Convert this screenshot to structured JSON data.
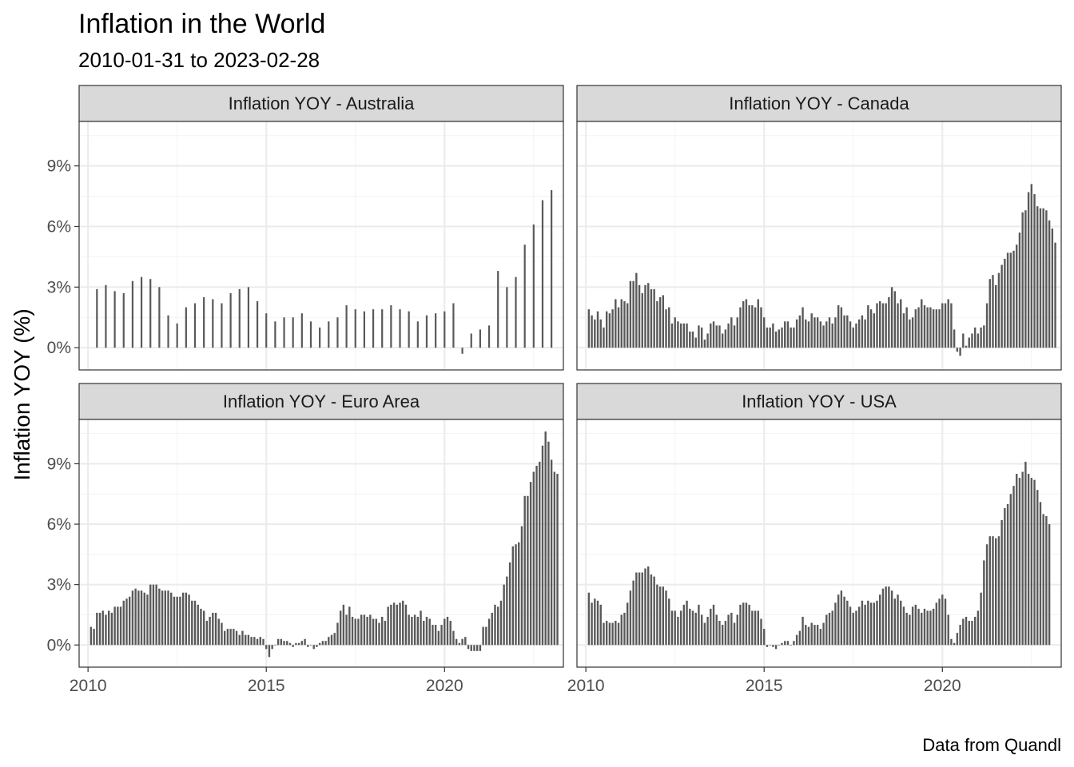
{
  "title": "Inflation in the World",
  "subtitle": "2010-01-31 to 2023-02-28",
  "caption": "Data from Quandl",
  "colors": {
    "bar": "#595959",
    "strip": "#d9d9d9",
    "grid": "#ebebeb"
  },
  "chart_data": {
    "type": "bar",
    "ylabel": "Inflation YOY (%)",
    "xlabel": "",
    "ylim": [
      -1.1,
      11.2
    ],
    "xlim": [
      "2009-10-01",
      "2023-05-01"
    ],
    "y_ticks": [
      0,
      3,
      6,
      9
    ],
    "y_tick_labels": [
      "0%",
      "3%",
      "6%",
      "9%"
    ],
    "x_ticks": [
      2010,
      2015,
      2020
    ],
    "x_tick_labels": [
      "2010",
      "2015",
      "2020"
    ],
    "grid": true,
    "facets": [
      {
        "name": "Inflation YOY - Australia",
        "frequency": "quarterly",
        "start": "2010-03",
        "values": [
          2.9,
          3.1,
          2.8,
          2.7,
          3.3,
          3.5,
          3.4,
          3.0,
          1.6,
          1.2,
          2.0,
          2.2,
          2.5,
          2.4,
          2.2,
          2.7,
          2.9,
          3.0,
          2.3,
          1.7,
          1.3,
          1.5,
          1.5,
          1.7,
          1.3,
          1.0,
          1.3,
          1.5,
          2.1,
          1.9,
          1.8,
          1.9,
          1.9,
          2.1,
          1.9,
          1.8,
          1.3,
          1.6,
          1.7,
          1.8,
          2.2,
          -0.3,
          0.7,
          0.9,
          1.1,
          3.8,
          3.0,
          3.5,
          5.1,
          6.1,
          7.3,
          7.8
        ]
      },
      {
        "name": "Inflation YOY - Canada",
        "frequency": "monthly",
        "start": "2010-01",
        "values": [
          1.9,
          1.6,
          1.4,
          1.8,
          1.4,
          1.0,
          1.8,
          1.7,
          1.9,
          2.4,
          2.0,
          2.4,
          2.3,
          2.2,
          3.3,
          3.3,
          3.7,
          3.1,
          2.7,
          3.1,
          3.2,
          2.9,
          2.9,
          2.3,
          2.5,
          2.6,
          1.9,
          2.0,
          1.2,
          1.5,
          1.3,
          1.2,
          1.2,
          1.2,
          0.8,
          0.8,
          0.5,
          1.1,
          1.0,
          0.4,
          0.7,
          1.2,
          1.3,
          1.1,
          1.1,
          0.7,
          0.9,
          1.2,
          1.5,
          1.1,
          1.5,
          2.0,
          2.3,
          2.4,
          2.1,
          2.1,
          2.0,
          2.4,
          2.0,
          1.5,
          1.0,
          1.0,
          1.2,
          0.8,
          0.9,
          1.0,
          1.3,
          1.3,
          1.0,
          1.0,
          1.4,
          1.6,
          2.0,
          1.4,
          1.3,
          1.7,
          1.5,
          1.5,
          1.3,
          1.1,
          1.3,
          1.5,
          1.2,
          1.5,
          2.1,
          2.0,
          1.6,
          1.6,
          1.3,
          1.0,
          1.2,
          1.4,
          1.6,
          1.4,
          2.1,
          1.9,
          1.7,
          2.2,
          2.3,
          2.2,
          2.2,
          2.5,
          3.0,
          2.8,
          2.2,
          2.4,
          1.7,
          2.0,
          1.4,
          1.5,
          1.9,
          2.0,
          2.4,
          2.1,
          2.0,
          2.0,
          1.9,
          1.9,
          1.9,
          2.2,
          2.2,
          2.4,
          2.2,
          0.9,
          -0.2,
          -0.4,
          0.7,
          0.1,
          0.5,
          0.7,
          1.0,
          0.7,
          1.0,
          1.1,
          2.2,
          3.4,
          3.6,
          3.1,
          3.7,
          4.1,
          4.4,
          4.7,
          4.7,
          4.8,
          5.1,
          5.7,
          6.7,
          6.8,
          7.7,
          8.1,
          7.6,
          7.0,
          6.9,
          6.9,
          6.8,
          6.3,
          5.9,
          5.2
        ]
      },
      {
        "name": "Inflation YOY - Euro Area",
        "frequency": "monthly",
        "start": "2010-01",
        "values": [
          0.9,
          0.8,
          1.6,
          1.6,
          1.7,
          1.5,
          1.7,
          1.6,
          1.9,
          1.9,
          1.9,
          2.2,
          2.3,
          2.4,
          2.7,
          2.8,
          2.7,
          2.7,
          2.6,
          2.5,
          3.0,
          3.0,
          3.0,
          2.8,
          2.7,
          2.7,
          2.7,
          2.6,
          2.4,
          2.4,
          2.4,
          2.6,
          2.6,
          2.5,
          2.2,
          2.2,
          2.0,
          1.8,
          1.7,
          1.2,
          1.4,
          1.6,
          1.6,
          1.3,
          1.1,
          0.7,
          0.8,
          0.8,
          0.8,
          0.7,
          0.5,
          0.7,
          0.5,
          0.5,
          0.4,
          0.4,
          0.3,
          0.4,
          0.3,
          -0.2,
          -0.6,
          -0.2,
          0.0,
          0.3,
          0.3,
          0.2,
          0.2,
          0.1,
          -0.1,
          0.1,
          0.1,
          0.2,
          0.3,
          -0.1,
          0.0,
          -0.2,
          -0.1,
          0.1,
          0.2,
          0.2,
          0.4,
          0.5,
          0.6,
          1.1,
          1.7,
          2.0,
          1.5,
          1.9,
          1.4,
          1.3,
          1.3,
          1.5,
          1.5,
          1.4,
          1.5,
          1.3,
          1.3,
          1.1,
          1.4,
          1.2,
          1.9,
          2.0,
          2.1,
          2.0,
          2.1,
          2.2,
          2.0,
          1.5,
          1.4,
          1.5,
          1.4,
          1.7,
          1.2,
          1.4,
          1.3,
          1.0,
          1.0,
          0.7,
          1.0,
          1.3,
          1.4,
          1.2,
          0.7,
          0.3,
          0.1,
          0.3,
          0.4,
          -0.2,
          -0.3,
          -0.3,
          -0.3,
          -0.3,
          0.9,
          0.9,
          1.3,
          1.6,
          2.0,
          1.9,
          2.2,
          3.0,
          3.4,
          4.1,
          4.9,
          5.0,
          5.1,
          5.9,
          7.4,
          7.4,
          8.1,
          8.6,
          8.9,
          9.1,
          9.9,
          10.6,
          10.1,
          9.2,
          8.6,
          8.5
        ]
      },
      {
        "name": "Inflation YOY - USA",
        "frequency": "monthly",
        "start": "2010-01",
        "values": [
          2.6,
          2.1,
          2.3,
          2.2,
          2.0,
          1.1,
          1.2,
          1.1,
          1.1,
          1.2,
          1.1,
          1.5,
          1.6,
          2.1,
          2.7,
          3.2,
          3.6,
          3.6,
          3.6,
          3.8,
          3.9,
          3.5,
          3.4,
          3.0,
          2.9,
          2.9,
          2.7,
          2.3,
          1.7,
          1.7,
          1.4,
          1.7,
          2.0,
          2.2,
          1.8,
          1.7,
          1.6,
          2.0,
          1.5,
          1.1,
          1.4,
          1.8,
          2.0,
          1.5,
          1.2,
          1.0,
          1.2,
          1.5,
          1.6,
          1.1,
          1.5,
          2.0,
          2.1,
          2.1,
          2.0,
          1.7,
          1.7,
          1.7,
          1.3,
          0.8,
          -0.1,
          0.0,
          -0.1,
          -0.2,
          0.0,
          0.1,
          0.2,
          0.2,
          0.0,
          0.2,
          0.5,
          0.7,
          1.4,
          1.0,
          0.9,
          1.1,
          1.0,
          1.0,
          0.8,
          1.1,
          1.5,
          1.6,
          1.7,
          2.1,
          2.5,
          2.7,
          2.4,
          2.2,
          1.9,
          1.6,
          1.7,
          1.9,
          2.2,
          2.0,
          2.2,
          2.1,
          2.1,
          2.2,
          2.5,
          2.8,
          2.9,
          2.9,
          2.7,
          2.3,
          2.5,
          2.2,
          1.9,
          1.6,
          1.5,
          1.9,
          2.0,
          1.8,
          1.6,
          1.8,
          1.7,
          1.7,
          1.8,
          2.1,
          2.3,
          2.5,
          2.3,
          1.5,
          0.3,
          0.1,
          0.6,
          1.0,
          1.3,
          1.4,
          1.2,
          1.2,
          1.4,
          1.7,
          2.6,
          4.2,
          5.0,
          5.4,
          5.4,
          5.3,
          5.4,
          6.2,
          6.8,
          7.0,
          7.5,
          7.9,
          8.5,
          8.3,
          8.6,
          9.1,
          8.5,
          8.3,
          8.2,
          7.7,
          7.1,
          6.5,
          6.4,
          6.0
        ]
      }
    ]
  }
}
